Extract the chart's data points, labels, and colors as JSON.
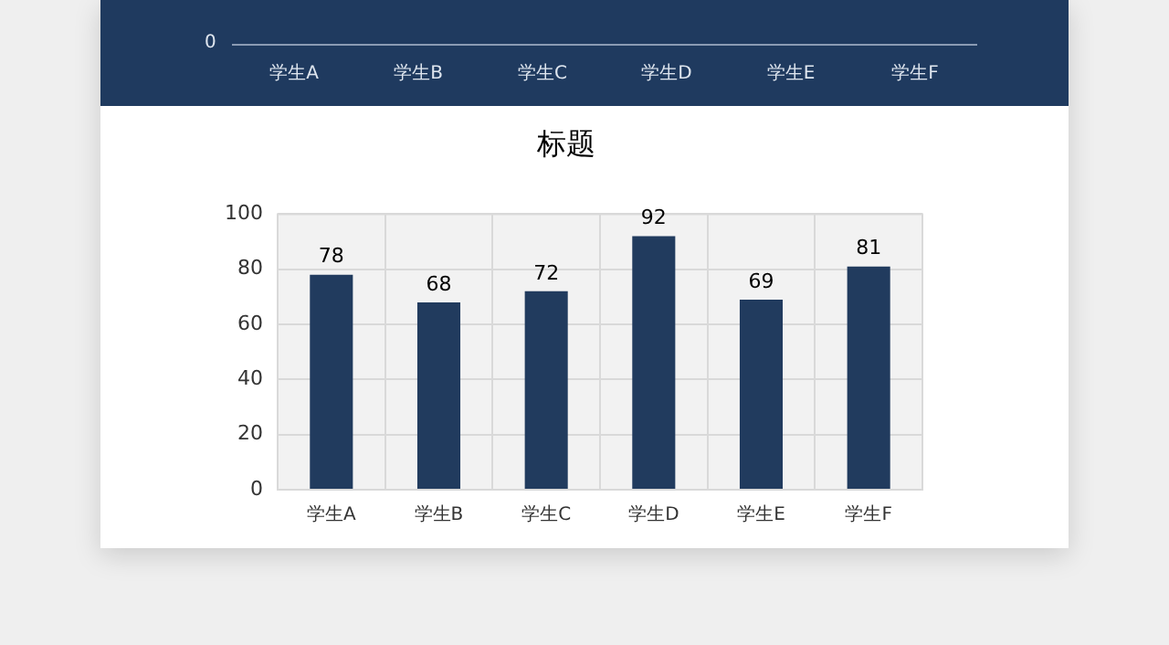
{
  "chart_data": [
    {
      "type": "other",
      "annotations": [
        "0",
        "学生A",
        "学生B",
        "学生C",
        "学生D",
        "学生E",
        "学生F"
      ]
    },
    {
      "type": "bar",
      "title": "标题",
      "categories": [
        "学生A",
        "学生B",
        "学生C",
        "学生D",
        "学生E",
        "学生F"
      ],
      "values": [
        78,
        68,
        72,
        92,
        69,
        81
      ],
      "color": "#213b5e",
      "ylim": [
        0,
        100
      ],
      "yticks": [
        0,
        20,
        40,
        60,
        80,
        100
      ],
      "grid": true,
      "data_labels": true
    }
  ]
}
